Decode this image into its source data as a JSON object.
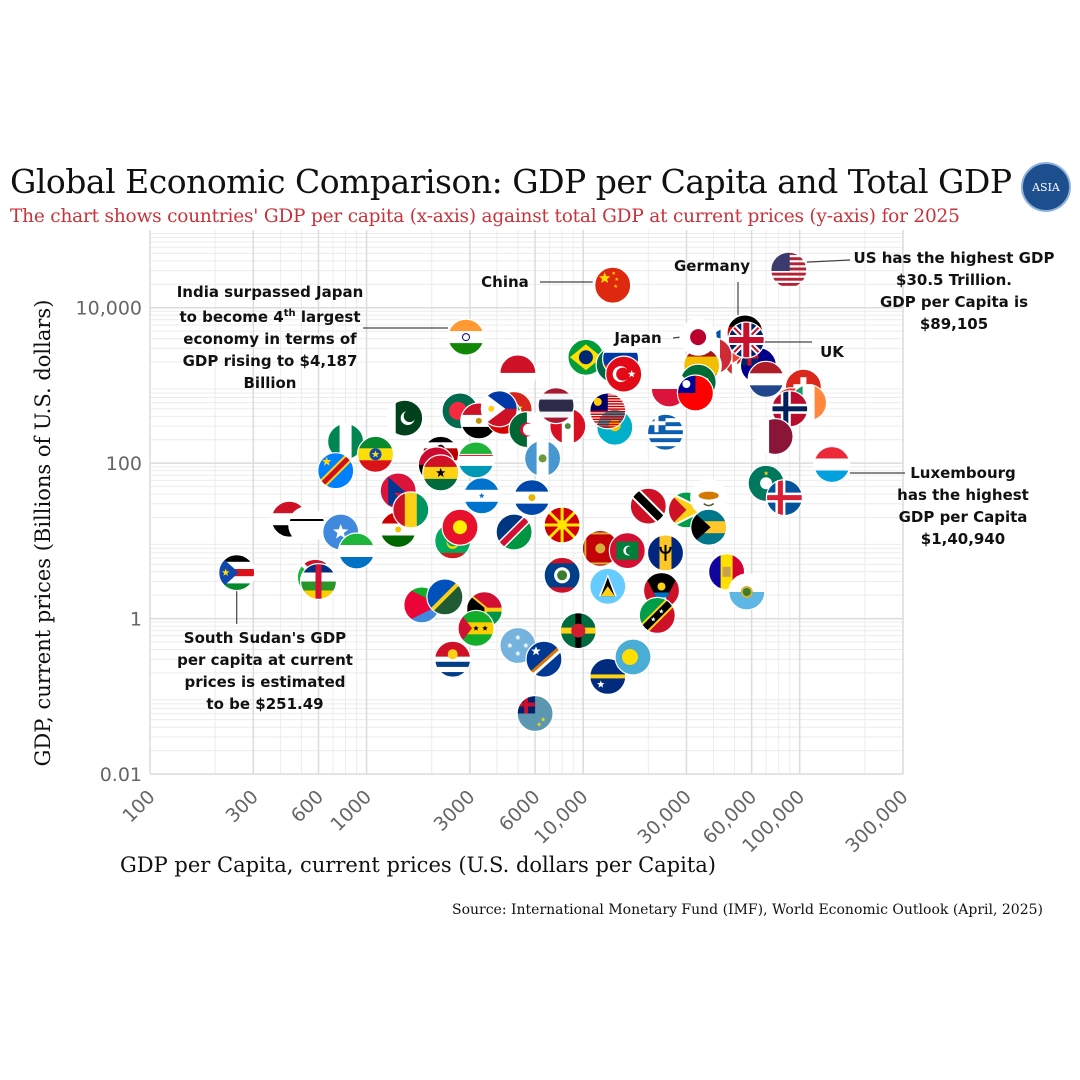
{
  "header": {
    "title": "Global Economic Comparison: GDP per Capita and Total GDP",
    "subtitle": "The chart shows countries' GDP per capita (x-axis) against total GDP at current prices (y-axis) for 2025",
    "logo_text": "ASIA"
  },
  "footer": {
    "source": "Source: International Monetary Fund (IMF), World Economic Outlook (April, 2025)"
  },
  "annotations": {
    "china": "China",
    "germany": "Germany",
    "japan": "Japan",
    "uk": "UK",
    "us_line1": "US has the highest GDP",
    "us_line2": "$30.5 Trillion.",
    "us_line3": "GDP per Capita is",
    "us_line4": "$89,105",
    "india_line1": "India surpassed Japan",
    "india_line2a": "to become 4",
    "india_line2sup": "th",
    "india_line2b": " largest",
    "india_line3": "economy in terms of",
    "india_line4": "GDP rising to $4,187",
    "india_line5": "Billion",
    "lux_line1": "Luxembourg",
    "lux_line2": "has the highest",
    "lux_line3": "GDP per Capita",
    "lux_line4": "$1,40,940",
    "ss_line1": "South Sudan's GDP",
    "ss_line2": "per capita at current",
    "ss_line3": "prices is estimated",
    "ss_line4": "to be $251.49"
  },
  "chart_data": {
    "type": "scatter",
    "title": "Global Economic Comparison: GDP per Capita and Total GDP",
    "xlabel": "GDP per Capita, current prices (U.S. dollars per Capita)",
    "ylabel": "GDP, current prices (Billions of U.S. dollars)",
    "x_scale": "log",
    "y_scale": "log",
    "xlim": [
      100,
      300000
    ],
    "ylim": [
      0.01,
      100000
    ],
    "x_ticks": [
      100,
      300,
      600,
      1000,
      3000,
      6000,
      10000,
      30000,
      60000,
      100000,
      300000
    ],
    "x_tick_labels": [
      "100",
      "300",
      "600",
      "1000",
      "3000",
      "6000",
      "10,000",
      "30,000",
      "60,000",
      "100,000",
      "300,000"
    ],
    "y_ticks": [
      0.01,
      1,
      100,
      10000
    ],
    "y_tick_labels": [
      "0.01",
      "1",
      "100",
      "10,000"
    ],
    "grid": true,
    "labeled_points": [
      {
        "name": "US",
        "flag": "us",
        "x": 89105,
        "y": 30500
      },
      {
        "name": "China",
        "flag": "china",
        "x": 13700,
        "y": 19500
      },
      {
        "name": "Germany",
        "flag": "germany",
        "x": 55900,
        "y": 4740
      },
      {
        "name": "Japan",
        "flag": "japan",
        "x": 33960,
        "y": 4190
      },
      {
        "name": "India",
        "flag": "india",
        "x": 2880,
        "y": 4187
      },
      {
        "name": "UK",
        "flag": "uk",
        "x": 56700,
        "y": 3840
      },
      {
        "name": "Luxembourg",
        "flag": "luxembourg",
        "x": 140940,
        "y": 96
      },
      {
        "name": "South Sudan",
        "flag": "south-sudan",
        "x": 251.49,
        "y": 3.9
      }
    ],
    "other_points": [
      {
        "name": "Brazil",
        "flag": "brazil",
        "x": 10300,
        "y": 2300
      },
      {
        "name": "Mexico",
        "flag": "mexico",
        "x": 13900,
        "y": 1850
      },
      {
        "name": "Russia",
        "flag": "russia",
        "x": 14900,
        "y": 2200
      },
      {
        "name": "Canada",
        "flag": "canada",
        "x": 53500,
        "y": 2200
      },
      {
        "name": "France",
        "flag": "france",
        "x": 46000,
        "y": 3200
      },
      {
        "name": "Italy",
        "flag": "italy",
        "x": 40200,
        "y": 2400
      },
      {
        "name": "South Korea",
        "flag": "south-korea",
        "x": 35900,
        "y": 1800
      },
      {
        "name": "Turkey",
        "flag": "turkey",
        "x": 15400,
        "y": 1400
      },
      {
        "name": "Spain",
        "flag": "spain",
        "x": 35300,
        "y": 1800
      },
      {
        "name": "Australia",
        "flag": "australia",
        "x": 64500,
        "y": 1800
      },
      {
        "name": "Indonesia",
        "flag": "indonesia",
        "x": 5000,
        "y": 1450
      },
      {
        "name": "Netherlands",
        "flag": "netherlands",
        "x": 70000,
        "y": 1200
      },
      {
        "name": "Saudi Arabia",
        "flag": "saudi-arabia",
        "x": 34000,
        "y": 1100
      },
      {
        "name": "Switzerland",
        "flag": "switzerland",
        "x": 104000,
        "y": 950
      },
      {
        "name": "Poland",
        "flag": "poland",
        "x": 25000,
        "y": 900
      },
      {
        "name": "Taiwan",
        "flag": "taiwan",
        "x": 33000,
        "y": 800
      },
      {
        "name": "Singapore",
        "flag": "singapore",
        "x": 92000,
        "y": 550
      },
      {
        "name": "Ireland",
        "flag": "ireland",
        "x": 110000,
        "y": 600
      },
      {
        "name": "Norway",
        "flag": "norway",
        "x": 90000,
        "y": 500
      },
      {
        "name": "Qatar",
        "flag": "qatar",
        "x": 77000,
        "y": 220
      },
      {
        "name": "Nigeria",
        "flag": "nigeria",
        "x": 800,
        "y": 190
      },
      {
        "name": "Ethiopia",
        "flag": "ethiopia",
        "x": 1100,
        "y": 130
      },
      {
        "name": "DR Congo",
        "flag": "dr-congo",
        "x": 720,
        "y": 80
      },
      {
        "name": "Pakistan",
        "flag": "pakistan",
        "x": 1500,
        "y": 380
      },
      {
        "name": "Bangladesh",
        "flag": "bangladesh",
        "x": 2700,
        "y": 470
      },
      {
        "name": "Egypt",
        "flag": "egypt",
        "x": 3300,
        "y": 350
      },
      {
        "name": "Vietnam",
        "flag": "vietnam",
        "x": 4800,
        "y": 490
      },
      {
        "name": "Iran",
        "flag": "iran",
        "x": 4300,
        "y": 400
      },
      {
        "name": "Philippines",
        "flag": "philippines",
        "x": 4100,
        "y": 500
      },
      {
        "name": "Peru",
        "flag": "peru",
        "x": 8500,
        "y": 300
      },
      {
        "name": "Kazakhstan",
        "flag": "kazakhstan",
        "x": 14000,
        "y": 290
      },
      {
        "name": "Malaysia",
        "flag": "malaysia",
        "x": 13000,
        "y": 470
      },
      {
        "name": "Thailand",
        "flag": "thailand",
        "x": 7500,
        "y": 550
      },
      {
        "name": "Algeria",
        "flag": "algeria",
        "x": 5500,
        "y": 270
      },
      {
        "name": "Greece",
        "flag": "greece",
        "x": 24000,
        "y": 250
      },
      {
        "name": "Kenya",
        "flag": "kenya",
        "x": 2200,
        "y": 130
      },
      {
        "name": "Angola",
        "flag": "angola",
        "x": 2100,
        "y": 95
      },
      {
        "name": "Ghana",
        "flag": "ghana",
        "x": 2200,
        "y": 75
      },
      {
        "name": "Uzbekistan",
        "flag": "uzbekistan",
        "x": 3200,
        "y": 110
      },
      {
        "name": "Guatemala",
        "flag": "guatemala",
        "x": 6500,
        "y": 115
      },
      {
        "name": "Honduras",
        "flag": "honduras",
        "x": 3400,
        "y": 38
      },
      {
        "name": "El Salvador",
        "flag": "el-salvador",
        "x": 5800,
        "y": 36
      },
      {
        "name": "Nepal",
        "flag": "nepal",
        "x": 1400,
        "y": 44
      },
      {
        "name": "Yemen",
        "flag": "yemen",
        "x": 440,
        "y": 19
      },
      {
        "name": "Afghanistan",
        "flag": "afghanistan",
        "x": 530,
        "y": 16
      },
      {
        "name": "Somalia",
        "flag": "somalia",
        "x": 760,
        "y": 13
      },
      {
        "name": "Burundi",
        "flag": "burundi",
        "x": 580,
        "y": 3.4
      },
      {
        "name": "Central African Republic",
        "flag": "car",
        "x": 600,
        "y": 3.0
      },
      {
        "name": "Sierra Leone",
        "flag": "sierra-leone",
        "x": 900,
        "y": 7.4
      },
      {
        "name": "Tajikistan",
        "flag": "tajikistan",
        "x": 1400,
        "y": 14
      },
      {
        "name": "Mauritania",
        "flag": "mauritania",
        "x": 2500,
        "y": 10
      },
      {
        "name": "Kyrgyzstan",
        "flag": "kyrgyzstan",
        "x": 2700,
        "y": 15
      },
      {
        "name": "Guinea",
        "flag": "guinea",
        "x": 1600,
        "y": 25
      },
      {
        "name": "Eritrea",
        "flag": "eritrea",
        "x": 1800,
        "y": 1.5
      },
      {
        "name": "Guyana",
        "flag": "guyana",
        "x": 30000,
        "y": 25
      },
      {
        "name": "Namibia",
        "flag": "namibia",
        "x": 4800,
        "y": 13
      },
      {
        "name": "North Macedonia",
        "flag": "north-macedonia",
        "x": 8000,
        "y": 16
      },
      {
        "name": "Trinidad and Tobago",
        "flag": "trinidad",
        "x": 20000,
        "y": 28
      },
      {
        "name": "Cyprus",
        "flag": "cyprus",
        "x": 38000,
        "y": 36
      },
      {
        "name": "Bahamas",
        "flag": "bahamas",
        "x": 38000,
        "y": 15
      },
      {
        "name": "Barbados",
        "flag": "barbados",
        "x": 24000,
        "y": 7
      },
      {
        "name": "Montenegro",
        "flag": "montenegro",
        "x": 12000,
        "y": 8
      },
      {
        "name": "Maldives",
        "flag": "maldives",
        "x": 16000,
        "y": 7.5
      },
      {
        "name": "Macau",
        "flag": "macau",
        "x": 70000,
        "y": 55
      },
      {
        "name": "Iceland",
        "flag": "iceland",
        "x": 85000,
        "y": 36
      },
      {
        "name": "Belize",
        "flag": "belize",
        "x": 8000,
        "y": 3.6
      },
      {
        "name": "Saint Lucia",
        "flag": "saint-lucia",
        "x": 13000,
        "y": 2.6
      },
      {
        "name": "Antigua and Barbuda",
        "flag": "antigua",
        "x": 23000,
        "y": 2.3
      },
      {
        "name": "Andorra",
        "flag": "andorra",
        "x": 46000,
        "y": 4
      },
      {
        "name": "San Marino",
        "flag": "san-marino",
        "x": 57000,
        "y": 2.2
      },
      {
        "name": "Vanuatu",
        "flag": "vanuatu",
        "x": 3500,
        "y": 1.3
      },
      {
        "name": "Solomon Islands",
        "flag": "solomon-islands",
        "x": 2300,
        "y": 1.9
      },
      {
        "name": "Sao Tome and Principe",
        "flag": "sao-tome",
        "x": 3200,
        "y": 0.75
      },
      {
        "name": "Micronesia",
        "flag": "micronesia",
        "x": 5000,
        "y": 0.45
      },
      {
        "name": "Marshall Islands",
        "flag": "marshall-islands",
        "x": 6600,
        "y": 0.3
      },
      {
        "name": "Nauru",
        "flag": "nauru",
        "x": 13000,
        "y": 0.18
      },
      {
        "name": "Palau",
        "flag": "palau",
        "x": 17000,
        "y": 0.32
      },
      {
        "name": "Kiribati",
        "flag": "kiribati",
        "x": 2500,
        "y": 0.3
      },
      {
        "name": "Tuvalu",
        "flag": "tuvalu",
        "x": 6000,
        "y": 0.06
      },
      {
        "name": "Dominica",
        "flag": "dominica",
        "x": 9500,
        "y": 0.7
      },
      {
        "name": "Saint Kitts and Nevis",
        "flag": "saint-kitts",
        "x": 22000,
        "y": 1.1
      }
    ]
  }
}
